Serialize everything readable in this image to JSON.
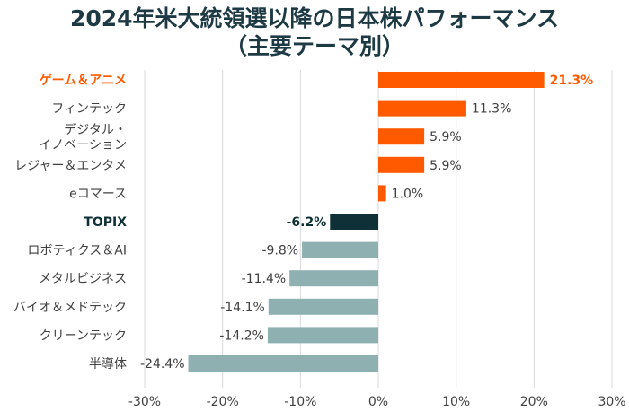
{
  "chart_data": {
    "type": "bar",
    "orientation": "horizontal",
    "title": "2024年米大統領選以降の日本株パフォーマンス",
    "subtitle": "（主要テーマ別）",
    "categories": [
      "ゲーム＆アニメ",
      "フィンテック",
      "デジタル・\nイノベーション",
      "レジャー＆エンタメ",
      "eコマース",
      "TOPIX",
      "ロボティクス＆AI",
      "メタルビジネス",
      "バイオ＆メドテック",
      "クリーンテック",
      "半導体"
    ],
    "values": [
      21.3,
      11.3,
      5.9,
      5.9,
      1.0,
      -6.2,
      -9.8,
      -11.4,
      -14.1,
      -14.2,
      -24.4
    ],
    "value_labels": [
      "21.3%",
      "11.3%",
      "5.9%",
      "5.9%",
      "1.0%",
      "-6.2%",
      "-9.8%",
      "-11.4%",
      "-14.1%",
      "-14.2%",
      "-24.4%"
    ],
    "highlight": {
      "ゲーム＆アニメ": "#ff5a00",
      "TOPIX": "#0f3037"
    },
    "colors": {
      "positive": "#ff5a00",
      "negative": "#8fb0b1",
      "benchmark": "#0f3037",
      "title": "#1d3a44",
      "grid": "#d9d9d9",
      "label": "#404040"
    },
    "xlim": [
      -30,
      30
    ],
    "xticks": [
      -30,
      -20,
      -10,
      0,
      10,
      20,
      30
    ],
    "xtick_labels": [
      "-30%",
      "-20%",
      "-10%",
      "0%",
      "10%",
      "20%",
      "30%"
    ],
    "grid": true
  }
}
